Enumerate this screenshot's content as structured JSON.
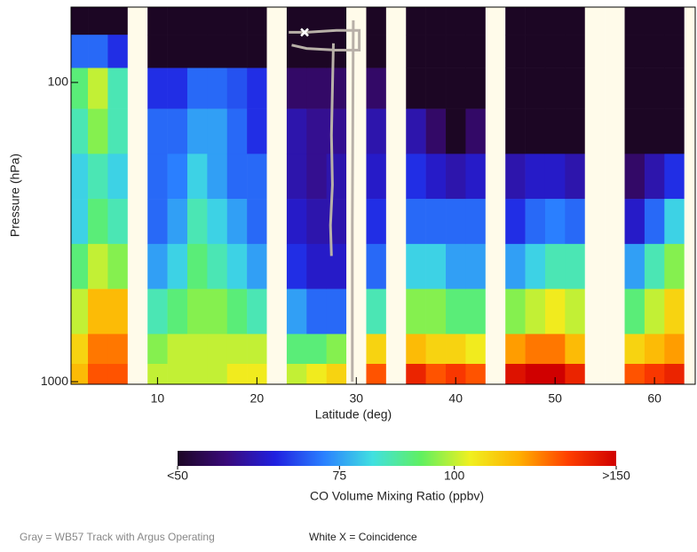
{
  "chart_data": {
    "type": "heatmap",
    "xlabel": "Latitude (deg)",
    "ylabel": "Pressure (hPa)",
    "xlim": [
      1.3,
      64.1
    ],
    "xticks": [
      10,
      20,
      30,
      40,
      50,
      60
    ],
    "ylim": [
      1020,
      56
    ],
    "yticks": [
      100,
      1000
    ],
    "ylog": true,
    "x": [
      2,
      4,
      6,
      8,
      10,
      12,
      14,
      16,
      18,
      20,
      22,
      24,
      26,
      28,
      30,
      32,
      34,
      36,
      38,
      40,
      42,
      44,
      46,
      48,
      50,
      52,
      54,
      56,
      58,
      60,
      62,
      64
    ],
    "y": [
      60,
      80,
      100,
      150,
      200,
      300,
      400,
      600,
      800,
      950
    ],
    "values": [
      [
        40,
        70,
        90,
        85,
        80,
        80,
        90,
        100,
        110,
        115
      ],
      [
        40,
        70,
        100,
        95,
        85,
        90,
        100,
        115,
        125,
        130
      ],
      [
        40,
        65,
        85,
        85,
        80,
        85,
        95,
        115,
        125,
        130
      ],
      null,
      [
        40,
        50,
        65,
        70,
        70,
        70,
        75,
        85,
        95,
        100
      ],
      [
        40,
        50,
        65,
        70,
        72,
        75,
        80,
        90,
        100,
        100
      ],
      [
        40,
        50,
        70,
        75,
        80,
        85,
        90,
        95,
        100,
        100
      ],
      [
        40,
        50,
        70,
        75,
        75,
        80,
        85,
        95,
        100,
        100
      ],
      [
        40,
        50,
        68,
        70,
        70,
        75,
        80,
        90,
        100,
        105
      ],
      [
        40,
        50,
        65,
        65,
        70,
        70,
        75,
        85,
        100,
        105
      ],
      null,
      [
        40,
        45,
        55,
        60,
        60,
        62,
        65,
        75,
        90,
        100
      ],
      [
        40,
        45,
        55,
        58,
        58,
        60,
        62,
        70,
        90,
        105
      ],
      [
        40,
        45,
        55,
        58,
        60,
        60,
        62,
        70,
        95,
        110
      ],
      null,
      [
        40,
        40,
        55,
        60,
        62,
        65,
        70,
        85,
        110,
        130
      ],
      null,
      [
        40,
        40,
        40,
        60,
        65,
        70,
        80,
        95,
        115,
        140
      ],
      [
        40,
        40,
        40,
        55,
        62,
        70,
        80,
        95,
        110,
        130
      ],
      [
        40,
        40,
        40,
        50,
        60,
        70,
        75,
        90,
        110,
        135
      ],
      [
        40,
        40,
        40,
        55,
        62,
        70,
        75,
        90,
        105,
        130
      ],
      null,
      [
        40,
        40,
        40,
        40,
        60,
        65,
        75,
        95,
        120,
        145
      ],
      [
        40,
        40,
        40,
        40,
        62,
        70,
        80,
        100,
        125,
        150
      ],
      [
        40,
        40,
        40,
        40,
        62,
        72,
        85,
        105,
        125,
        150
      ],
      [
        40,
        40,
        40,
        40,
        60,
        70,
        85,
        100,
        115,
        140
      ],
      null,
      null,
      [
        40,
        40,
        40,
        40,
        55,
        62,
        75,
        90,
        110,
        130
      ],
      [
        40,
        40,
        40,
        40,
        60,
        70,
        85,
        100,
        115,
        135
      ],
      [
        40,
        40,
        40,
        40,
        65,
        80,
        95,
        110,
        120,
        140
      ],
      null
    ],
    "missing_color": "#fffbea",
    "colormap": [
      "#1c0624",
      "#3a0a7a",
      "#2020e0",
      "#2a80ff",
      "#40e0e0",
      "#60f060",
      "#f0f020",
      "#ffb000",
      "#ff4000",
      "#d00000"
    ],
    "colorbar": {
      "label": "CO Volume Mixing Ratio (ppbv)",
      "lim": [
        50,
        150
      ],
      "log": true,
      "ticks": [
        {
          "value": 50,
          "label": "<50"
        },
        75,
        100,
        {
          "value": 150,
          "label": ">150"
        }
      ]
    },
    "track": {
      "name": "Gray = WB57 Track with Argus Operating",
      "color": "#b8b0a8",
      "x": [
        23.2,
        25,
        28,
        30.3,
        30.3,
        28,
        25,
        23.5,
        null,
        27.7,
        27.5,
        27.6,
        27.4,
        27.5,
        null,
        29.7,
        29.6,
        29.6
      ],
      "y": [
        68,
        68,
        67,
        67,
        78,
        78,
        77,
        75,
        null,
        74,
        150,
        220,
        300,
        380,
        null,
        62,
        300,
        1000
      ]
    },
    "coincidence": {
      "name": "White X = Coincidence",
      "x": 24.8,
      "y": 68,
      "color": "#ffffff"
    }
  }
}
